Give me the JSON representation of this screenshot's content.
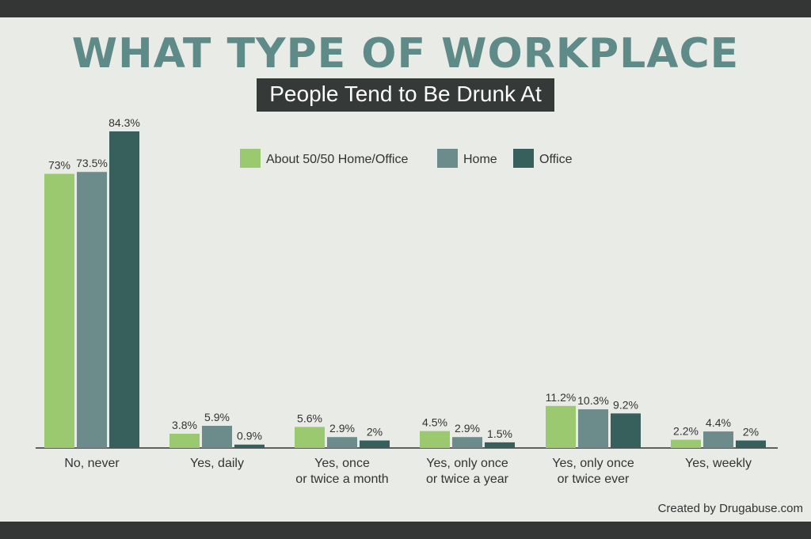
{
  "title": "WHAT TYPE OF WORKPLACE",
  "subtitle": "People Tend to Be Drunk At",
  "credit": "Created by Drugabuse.com",
  "colors": {
    "bg": "#e9ebe6",
    "title": "#5e8a87",
    "series": [
      "#9bc96f",
      "#6b8c8b",
      "#37605d"
    ]
  },
  "chart_data": {
    "type": "bar",
    "categories": [
      "No, never",
      "Yes, daily",
      "Yes, once or twice a month",
      "Yes, only once or twice a year",
      "Yes, only once or twice ever",
      "Yes, weekly"
    ],
    "series": [
      {
        "name": "About 50/50 Home/Office",
        "values": [
          73,
          3.8,
          5.6,
          4.5,
          11.2,
          2.2
        ],
        "labels": [
          "73%",
          "3.8%",
          "5.6%",
          "4.5%",
          "11.2%",
          "2.2%"
        ]
      },
      {
        "name": "Home",
        "values": [
          73.5,
          5.9,
          2.9,
          2.9,
          10.3,
          4.4
        ],
        "labels": [
          "73.5%",
          "5.9%",
          "2.9%",
          "2.9%",
          "10.3%",
          "4.4%"
        ]
      },
      {
        "name": "Office",
        "values": [
          84.3,
          0.9,
          2,
          1.5,
          9.2,
          2
        ],
        "labels": [
          "84.3%",
          "0.9%",
          "2%",
          "1.5%",
          "9.2%",
          "2%"
        ]
      }
    ],
    "ylim": [
      0,
      84.3
    ],
    "grid": false,
    "legend": "top-center"
  }
}
